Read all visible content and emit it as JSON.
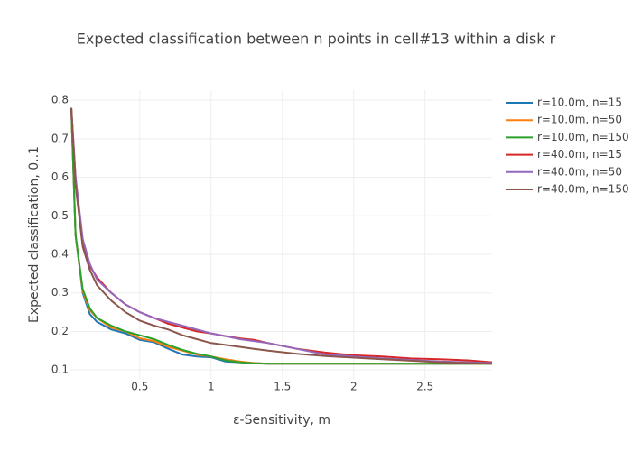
{
  "chart_data": {
    "type": "line",
    "title": "Expected classification between n points in cell#13 within a disk r",
    "x_label": "ε-Sensitivity, m",
    "y_label": "Expected classification, 0..1",
    "x": [
      0.02,
      0.05,
      0.1,
      0.15,
      0.2,
      0.3,
      0.4,
      0.5,
      0.6,
      0.7,
      0.8,
      0.9,
      1.0,
      1.1,
      1.2,
      1.3,
      1.4,
      1.6,
      1.8,
      2.0,
      2.2,
      2.4,
      2.6,
      2.8,
      2.97
    ],
    "xlim": [
      0.02,
      2.97
    ],
    "ylim": [
      0.077,
      0.826
    ],
    "xticks": [
      0.5,
      1,
      1.5,
      2,
      2.5
    ],
    "yticks": [
      0.1,
      0.2,
      0.3,
      0.4,
      0.5,
      0.6,
      0.7,
      0.8
    ],
    "grid": true,
    "legend": "right",
    "series": [
      {
        "name": "r=10.0m, n=15",
        "color": "#1f77b4",
        "values": [
          0.78,
          0.45,
          0.3,
          0.245,
          0.225,
          0.205,
          0.195,
          0.178,
          0.172,
          0.155,
          0.14,
          0.135,
          0.133,
          0.122,
          0.12,
          0.118,
          0.116,
          0.116,
          0.116,
          0.116,
          0.116,
          0.116,
          0.116,
          0.116,
          0.116
        ]
      },
      {
        "name": "r=10.0m, n=50",
        "color": "#ff7f0e",
        "values": [
          0.78,
          0.45,
          0.305,
          0.255,
          0.235,
          0.21,
          0.2,
          0.182,
          0.175,
          0.16,
          0.15,
          0.14,
          0.135,
          0.128,
          0.122,
          0.118,
          0.116,
          0.116,
          0.116,
          0.116,
          0.116,
          0.116,
          0.116,
          0.116,
          0.116
        ]
      },
      {
        "name": "r=10.0m, n=150",
        "color": "#2ca02c",
        "values": [
          0.78,
          0.45,
          0.31,
          0.26,
          0.235,
          0.215,
          0.2,
          0.19,
          0.18,
          0.165,
          0.152,
          0.142,
          0.135,
          0.125,
          0.12,
          0.117,
          0.116,
          0.116,
          0.116,
          0.116,
          0.116,
          0.116,
          0.116,
          0.116,
          0.116
        ]
      },
      {
        "name": "r=40.0m, n=15",
        "color": "#d62728",
        "values": [
          0.78,
          0.6,
          0.43,
          0.37,
          0.34,
          0.3,
          0.27,
          0.25,
          0.235,
          0.22,
          0.21,
          0.2,
          0.195,
          0.188,
          0.182,
          0.178,
          0.17,
          0.155,
          0.145,
          0.138,
          0.135,
          0.13,
          0.128,
          0.125,
          0.12
        ]
      },
      {
        "name": "r=40.0m, n=50",
        "color": "#9467bd",
        "values": [
          0.78,
          0.6,
          0.44,
          0.375,
          0.335,
          0.3,
          0.27,
          0.25,
          0.235,
          0.225,
          0.215,
          0.205,
          0.195,
          0.188,
          0.18,
          0.175,
          0.17,
          0.155,
          0.14,
          0.135,
          0.13,
          0.126,
          0.122,
          0.12,
          0.118
        ]
      },
      {
        "name": "r=40.0m, n=150",
        "color": "#8c564b",
        "values": [
          0.78,
          0.58,
          0.42,
          0.36,
          0.32,
          0.28,
          0.25,
          0.228,
          0.215,
          0.205,
          0.19,
          0.18,
          0.17,
          0.165,
          0.16,
          0.155,
          0.15,
          0.142,
          0.136,
          0.132,
          0.128,
          0.124,
          0.12,
          0.118,
          0.116
        ]
      }
    ]
  }
}
